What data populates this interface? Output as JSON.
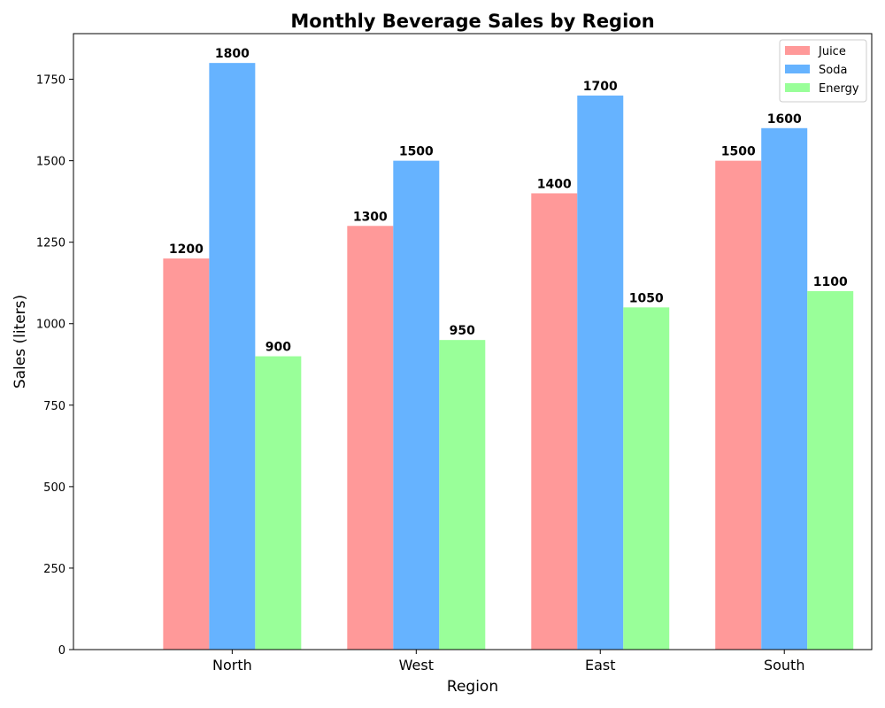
{
  "chart_data": {
    "type": "bar",
    "title": "Monthly Beverage Sales by Region",
    "xlabel": "Region",
    "ylabel": "Sales (liters)",
    "categories": [
      "North",
      "West",
      "East",
      "South"
    ],
    "series": [
      {
        "name": "Juice",
        "color": "#ff9999",
        "values": [
          1200,
          1300,
          1400,
          1500
        ]
      },
      {
        "name": "Soda",
        "color": "#66b3ff",
        "values": [
          1800,
          1500,
          1700,
          1600
        ]
      },
      {
        "name": "Energy",
        "color": "#99ff99",
        "values": [
          900,
          950,
          1050,
          1100
        ]
      }
    ],
    "ylim": [
      0,
      1890
    ],
    "yticks": [
      0,
      250,
      500,
      750,
      1000,
      1250,
      1500,
      1750
    ],
    "grid": false,
    "legend_position": "top-right",
    "data_labels": true
  }
}
